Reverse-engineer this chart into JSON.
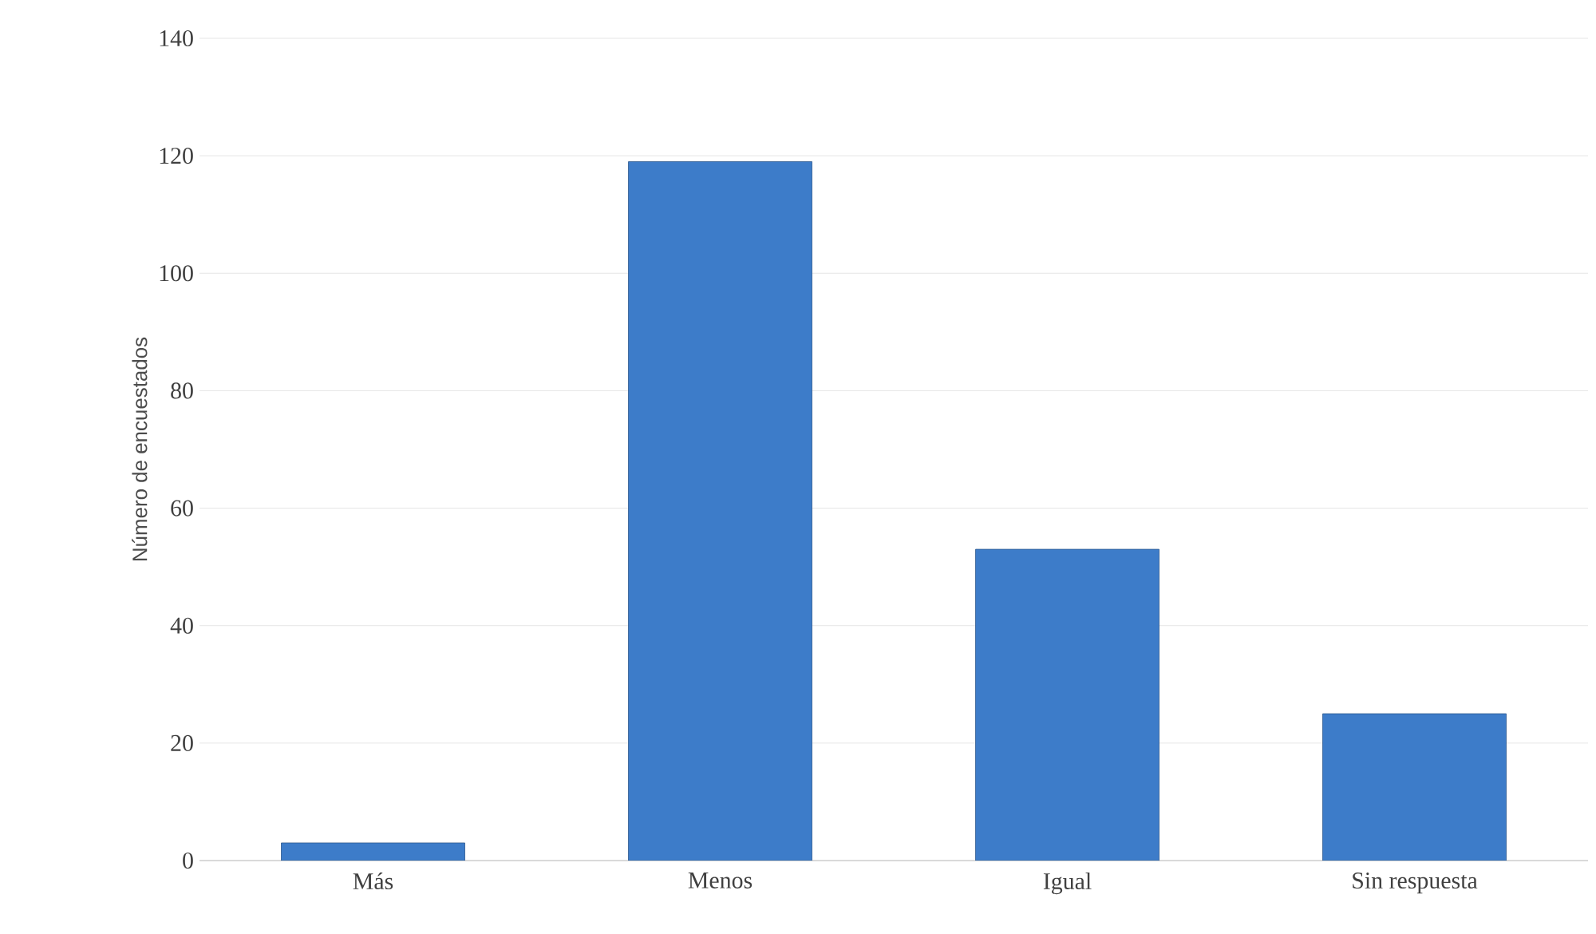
{
  "chart_data": {
    "type": "bar",
    "ylabel": "Número de encuestados",
    "categories": [
      "Más",
      "Menos",
      "Igual",
      "Sin respuesta"
    ],
    "values": [
      3,
      119,
      53,
      25
    ],
    "color": "#3d7cc9",
    "ylim": [
      0,
      140
    ],
    "yticks": [
      0,
      20,
      40,
      60,
      80,
      100,
      120,
      140
    ],
    "grid": "y"
  }
}
